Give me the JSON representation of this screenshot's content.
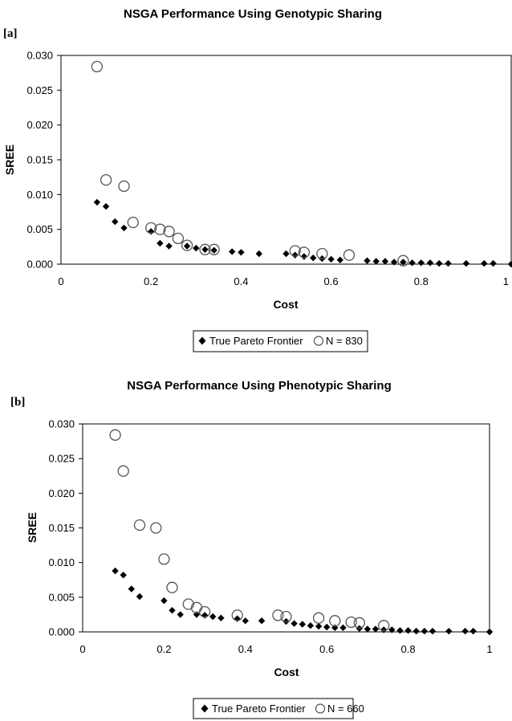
{
  "chart_data": [
    {
      "type": "scatter",
      "panel_label": "[a]",
      "title": "NSGA Performance Using Genotypic Sharing",
      "xlabel": "Cost",
      "ylabel": "SREE",
      "xlim": [
        0,
        1
      ],
      "ylim": [
        0,
        0.03
      ],
      "x_ticks": [
        "0",
        "0.2",
        "0.4",
        "0.6",
        "0.8",
        "1"
      ],
      "y_ticks": [
        "0.000",
        "0.005",
        "0.010",
        "0.015",
        "0.020",
        "0.025",
        "0.030"
      ],
      "grid": false,
      "legend_position": "bottom",
      "series": [
        {
          "name": "True Pareto Frontier",
          "marker": "filled-diamond",
          "points": [
            [
              0.08,
              0.0089
            ],
            [
              0.1,
              0.0083
            ],
            [
              0.12,
              0.0061
            ],
            [
              0.14,
              0.0052
            ],
            [
              0.2,
              0.0047
            ],
            [
              0.22,
              0.003
            ],
            [
              0.24,
              0.0026
            ],
            [
              0.28,
              0.0026
            ],
            [
              0.3,
              0.0023
            ],
            [
              0.32,
              0.0021
            ],
            [
              0.34,
              0.002
            ],
            [
              0.38,
              0.0018
            ],
            [
              0.4,
              0.0017
            ],
            [
              0.44,
              0.0015
            ],
            [
              0.5,
              0.0015
            ],
            [
              0.52,
              0.0013
            ],
            [
              0.54,
              0.0011
            ],
            [
              0.56,
              0.0009
            ],
            [
              0.58,
              0.0008
            ],
            [
              0.6,
              0.0007
            ],
            [
              0.62,
              0.0006
            ],
            [
              0.68,
              0.0005
            ],
            [
              0.7,
              0.0004
            ],
            [
              0.72,
              0.0004
            ],
            [
              0.74,
              0.0003
            ],
            [
              0.76,
              0.0003
            ],
            [
              0.78,
              0.0002
            ],
            [
              0.8,
              0.0002
            ],
            [
              0.82,
              0.0002
            ],
            [
              0.84,
              0.0001
            ],
            [
              0.86,
              0.0001
            ],
            [
              0.9,
              0.0001
            ],
            [
              0.94,
              0.0001
            ],
            [
              0.96,
              0.0001
            ],
            [
              1.0,
              0.0
            ]
          ]
        },
        {
          "name": "N = 830",
          "marker": "open-circle",
          "points": [
            [
              0.08,
              0.0284
            ],
            [
              0.1,
              0.0121
            ],
            [
              0.14,
              0.0112
            ],
            [
              0.16,
              0.006
            ],
            [
              0.2,
              0.0052
            ],
            [
              0.22,
              0.005
            ],
            [
              0.24,
              0.0047
            ],
            [
              0.26,
              0.0037
            ],
            [
              0.28,
              0.0027
            ],
            [
              0.32,
              0.0021
            ],
            [
              0.34,
              0.0021
            ],
            [
              0.52,
              0.0019
            ],
            [
              0.54,
              0.0017
            ],
            [
              0.58,
              0.0015
            ],
            [
              0.64,
              0.0013
            ],
            [
              0.76,
              0.0005
            ]
          ]
        }
      ]
    },
    {
      "type": "scatter",
      "panel_label": "[b]",
      "title": "NSGA Performance Using Phenotypic Sharing",
      "xlabel": "Cost",
      "ylabel": "SREE",
      "xlim": [
        0,
        1
      ],
      "ylim": [
        0,
        0.03
      ],
      "x_ticks": [
        "0",
        "0.2",
        "0.4",
        "0.6",
        "0.8",
        "1"
      ],
      "y_ticks": [
        "0.000",
        "0.005",
        "0.010",
        "0.015",
        "0.020",
        "0.025",
        "0.030"
      ],
      "grid": false,
      "legend_position": "bottom",
      "series": [
        {
          "name": "True Pareto Frontier",
          "marker": "filled-diamond",
          "points": [
            [
              0.08,
              0.0088
            ],
            [
              0.1,
              0.0082
            ],
            [
              0.12,
              0.0062
            ],
            [
              0.14,
              0.0051
            ],
            [
              0.2,
              0.0045
            ],
            [
              0.22,
              0.0031
            ],
            [
              0.24,
              0.0025
            ],
            [
              0.28,
              0.0025
            ],
            [
              0.3,
              0.0024
            ],
            [
              0.32,
              0.0022
            ],
            [
              0.34,
              0.002
            ],
            [
              0.38,
              0.0019
            ],
            [
              0.4,
              0.0016
            ],
            [
              0.44,
              0.0016
            ],
            [
              0.5,
              0.0015
            ],
            [
              0.52,
              0.0012
            ],
            [
              0.54,
              0.0011
            ],
            [
              0.56,
              0.0009
            ],
            [
              0.58,
              0.0008
            ],
            [
              0.6,
              0.0007
            ],
            [
              0.62,
              0.0006
            ],
            [
              0.64,
              0.0006
            ],
            [
              0.68,
              0.0005
            ],
            [
              0.7,
              0.0004
            ],
            [
              0.72,
              0.0004
            ],
            [
              0.74,
              0.0003
            ],
            [
              0.76,
              0.0003
            ],
            [
              0.78,
              0.0002
            ],
            [
              0.8,
              0.0002
            ],
            [
              0.82,
              0.0001
            ],
            [
              0.84,
              0.0001
            ],
            [
              0.86,
              0.0001
            ],
            [
              0.9,
              0.0001
            ],
            [
              0.94,
              0.0001
            ],
            [
              0.96,
              0.0001
            ],
            [
              1.0,
              0.0
            ]
          ]
        },
        {
          "name": "N = 660",
          "marker": "open-circle",
          "points": [
            [
              0.08,
              0.0284
            ],
            [
              0.1,
              0.0232
            ],
            [
              0.14,
              0.0154
            ],
            [
              0.18,
              0.015
            ],
            [
              0.2,
              0.0105
            ],
            [
              0.22,
              0.0064
            ],
            [
              0.26,
              0.004
            ],
            [
              0.28,
              0.0035
            ],
            [
              0.3,
              0.0029
            ],
            [
              0.38,
              0.0024
            ],
            [
              0.48,
              0.0024
            ],
            [
              0.5,
              0.0022
            ],
            [
              0.58,
              0.002
            ],
            [
              0.62,
              0.0016
            ],
            [
              0.66,
              0.0014
            ],
            [
              0.68,
              0.0013
            ],
            [
              0.74,
              0.0009
            ]
          ]
        }
      ]
    }
  ]
}
